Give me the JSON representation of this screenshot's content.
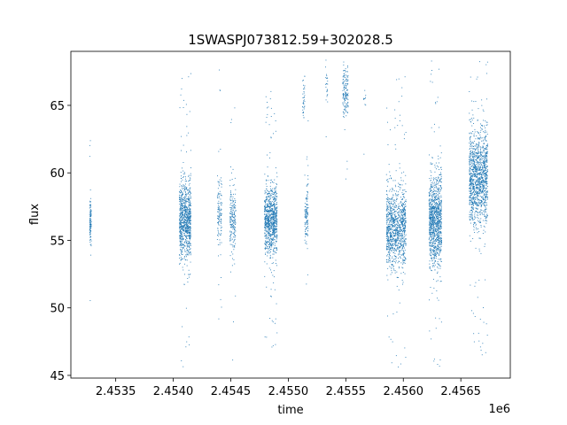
{
  "chart_data": {
    "type": "scatter",
    "title": "1SWASPJ073812.59+302028.5",
    "xlabel": "time",
    "ylabel": "flux",
    "x_offset_label": "1e6",
    "xlim": [
      2453110,
      2456930
    ],
    "ylim": [
      44.8,
      69.0
    ],
    "x_ticks": [
      {
        "value": 2453500,
        "label": "2.4535"
      },
      {
        "value": 2454000,
        "label": "2.4540"
      },
      {
        "value": 2454500,
        "label": "2.4545"
      },
      {
        "value": 2455000,
        "label": "2.4550"
      },
      {
        "value": 2455500,
        "label": "2.4555"
      },
      {
        "value": 2456000,
        "label": "2.4560"
      },
      {
        "value": 2456500,
        "label": "2.4565"
      }
    ],
    "y_ticks": [
      {
        "value": 45,
        "label": "45"
      },
      {
        "value": 50,
        "label": "50"
      },
      {
        "value": 55,
        "label": "55"
      },
      {
        "value": 60,
        "label": "60"
      },
      {
        "value": 65,
        "label": "65"
      }
    ],
    "marker_color": "#1f77b4",
    "grid": false,
    "clusters": [
      {
        "x_start": 2453270,
        "x_end": 2453285,
        "y_center": 56.3,
        "y_spread": 0.9,
        "count": 120
      },
      {
        "x_start": 2454050,
        "x_end": 2454150,
        "y_center": 56.5,
        "y_spread": 1.4,
        "count": 900
      },
      {
        "x_start": 2454380,
        "x_end": 2454420,
        "y_center": 57.0,
        "y_spread": 1.4,
        "count": 120
      },
      {
        "x_start": 2454490,
        "x_end": 2454540,
        "y_center": 56.5,
        "y_spread": 1.3,
        "count": 200
      },
      {
        "x_start": 2454790,
        "x_end": 2454900,
        "y_center": 56.5,
        "y_spread": 1.2,
        "count": 900
      },
      {
        "x_start": 2455140,
        "x_end": 2455170,
        "y_center": 56.5,
        "y_spread": 0.9,
        "count": 100
      },
      {
        "x_start": 2455150,
        "x_end": 2455170,
        "y_center": 58.0,
        "y_spread": 1.0,
        "count": 20
      },
      {
        "x_start": 2455120,
        "x_end": 2455140,
        "y_center": 65.5,
        "y_spread": 0.7,
        "count": 35
      },
      {
        "x_start": 2455320,
        "x_end": 2455340,
        "y_center": 66.5,
        "y_spread": 0.8,
        "count": 25
      },
      {
        "x_start": 2455470,
        "x_end": 2455520,
        "y_center": 66.0,
        "y_spread": 0.9,
        "count": 150
      },
      {
        "x_start": 2455650,
        "x_end": 2455670,
        "y_center": 65.5,
        "y_spread": 0.6,
        "count": 10
      },
      {
        "x_start": 2455850,
        "x_end": 2456020,
        "y_center": 56.0,
        "y_spread": 1.4,
        "count": 1100
      },
      {
        "x_start": 2456220,
        "x_end": 2456330,
        "y_center": 56.5,
        "y_spread": 1.7,
        "count": 1100
      },
      {
        "x_start": 2456570,
        "x_end": 2456730,
        "y_center": 59.7,
        "y_spread": 1.7,
        "count": 1300
      }
    ]
  }
}
